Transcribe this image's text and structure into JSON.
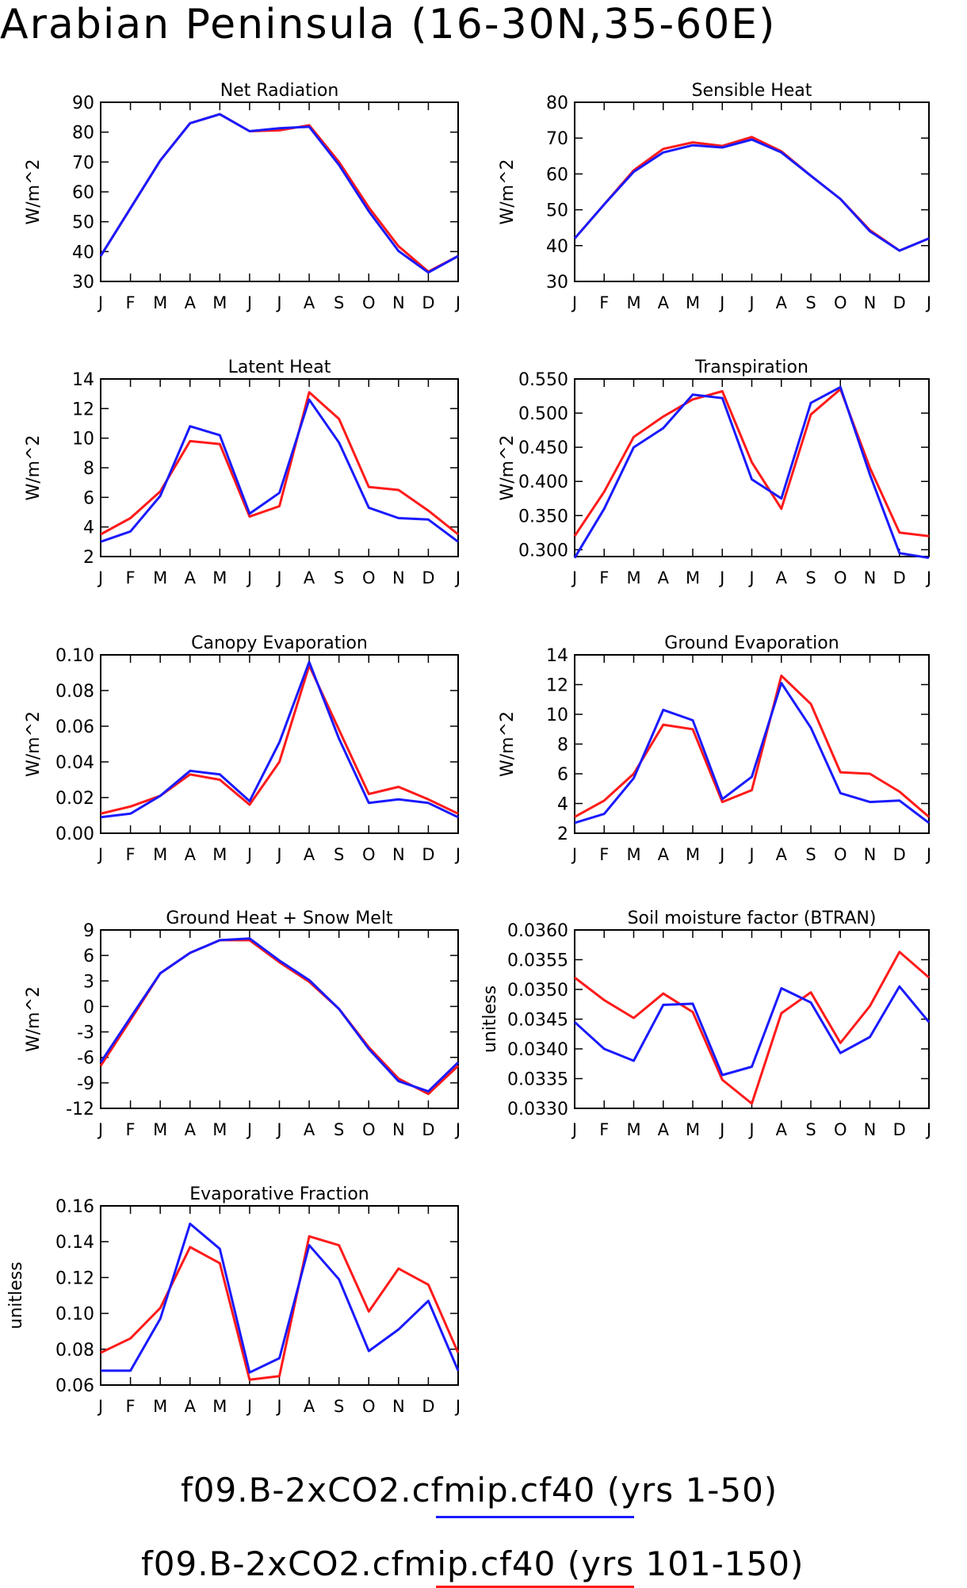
{
  "title": "Arabian Peninsula (16-30N,35-60E)",
  "months": [
    "J",
    "F",
    "M",
    "A",
    "M",
    "J",
    "J",
    "A",
    "S",
    "O",
    "N",
    "D",
    "J"
  ],
  "colors": {
    "blue": "#1a1aff",
    "red": "#ff1a1a"
  },
  "legend": {
    "blue": "f09.B-2xCO2.cfmip.cf40 (yrs 1-50)",
    "red": "f09.B-2xCO2.cfmip.cf40 (yrs 101-150)"
  },
  "chart_data": [
    {
      "type": "line",
      "title": "Net Radiation",
      "ylabel": "W/m^2",
      "ylim": [
        30,
        90
      ],
      "yticks": [
        30,
        40,
        50,
        60,
        70,
        80,
        90
      ],
      "ytick_labels": [
        "30",
        "40",
        "50",
        "60",
        "70",
        "80",
        "90"
      ],
      "categories": [
        "J",
        "F",
        "M",
        "A",
        "M",
        "J",
        "J",
        "A",
        "S",
        "O",
        "N",
        "D",
        "J"
      ],
      "series": [
        {
          "color": "blue",
          "values": [
            38.5,
            54.5,
            70.5,
            83,
            86,
            80.3,
            81.3,
            81.8,
            69,
            53.5,
            40.2,
            33,
            38.5
          ]
        },
        {
          "color": "red",
          "values": [
            38.5,
            54.5,
            70.5,
            83,
            86,
            80.3,
            80.6,
            82.3,
            70,
            54.8,
            41.8,
            33.3,
            38.5
          ]
        }
      ]
    },
    {
      "type": "line",
      "title": "Sensible Heat",
      "ylabel": "W/m^2",
      "ylim": [
        30,
        80
      ],
      "yticks": [
        30,
        40,
        50,
        60,
        70,
        80
      ],
      "ytick_labels": [
        "30",
        "40",
        "50",
        "60",
        "70",
        "80"
      ],
      "categories": [
        "J",
        "F",
        "M",
        "A",
        "M",
        "J",
        "J",
        "A",
        "S",
        "O",
        "N",
        "D",
        "J"
      ],
      "series": [
        {
          "color": "blue",
          "values": [
            42,
            51.5,
            60.6,
            66,
            68,
            67.4,
            69.6,
            66,
            59.5,
            53,
            44,
            38.6,
            42
          ]
        },
        {
          "color": "red",
          "values": [
            42,
            51.5,
            61,
            67,
            68.8,
            67.8,
            70.3,
            66.3,
            59.5,
            53,
            44.3,
            38.6,
            42
          ]
        }
      ]
    },
    {
      "type": "line",
      "title": "Latent Heat",
      "ylabel": "W/m^2",
      "ylim": [
        2,
        14
      ],
      "yticks": [
        2,
        4,
        6,
        8,
        10,
        12,
        14
      ],
      "ytick_labels": [
        "2",
        "4",
        "6",
        "8",
        "10",
        "12",
        "14"
      ],
      "categories": [
        "J",
        "F",
        "M",
        "A",
        "M",
        "J",
        "J",
        "A",
        "S",
        "O",
        "N",
        "D",
        "J"
      ],
      "series": [
        {
          "color": "blue",
          "values": [
            3,
            3.7,
            6.1,
            10.8,
            10.2,
            4.9,
            6.3,
            12.6,
            9.7,
            5.3,
            4.6,
            4.5,
            3
          ]
        },
        {
          "color": "red",
          "values": [
            3.5,
            4.6,
            6.4,
            9.8,
            9.6,
            4.7,
            5.4,
            13.1,
            11.3,
            6.7,
            6.5,
            5.1,
            3.5
          ]
        }
      ]
    },
    {
      "type": "line",
      "title": "Transpiration",
      "ylabel": "W/m^2",
      "ylim": [
        0.29,
        0.55
      ],
      "yticks": [
        0.3,
        0.35,
        0.4,
        0.45,
        0.5,
        0.55
      ],
      "ytick_labels": [
        "0.300",
        "0.350",
        "0.400",
        "0.450",
        "0.500",
        "0.550"
      ],
      "categories": [
        "J",
        "F",
        "M",
        "A",
        "M",
        "J",
        "J",
        "A",
        "S",
        "O",
        "N",
        "D",
        "J"
      ],
      "series": [
        {
          "color": "blue",
          "values": [
            0.288,
            0.36,
            0.45,
            0.478,
            0.527,
            0.522,
            0.403,
            0.375,
            0.515,
            0.538,
            0.41,
            0.295,
            0.288
          ]
        },
        {
          "color": "red",
          "values": [
            0.32,
            0.385,
            0.465,
            0.495,
            0.52,
            0.532,
            0.428,
            0.36,
            0.498,
            0.535,
            0.42,
            0.325,
            0.32
          ]
        }
      ]
    },
    {
      "type": "line",
      "title": "Canopy Evaporation",
      "ylabel": "W/m^2",
      "ylim": [
        0,
        0.1
      ],
      "yticks": [
        0,
        0.02,
        0.04,
        0.06,
        0.08,
        0.1
      ],
      "ytick_labels": [
        "0.00",
        "0.02",
        "0.04",
        "0.06",
        "0.08",
        "0.10"
      ],
      "categories": [
        "J",
        "F",
        "M",
        "A",
        "M",
        "J",
        "J",
        "A",
        "S",
        "O",
        "N",
        "D",
        "J"
      ],
      "series": [
        {
          "color": "blue",
          "values": [
            0.009,
            0.011,
            0.021,
            0.035,
            0.033,
            0.018,
            0.051,
            0.096,
            0.053,
            0.017,
            0.019,
            0.017,
            0.009
          ]
        },
        {
          "color": "red",
          "values": [
            0.011,
            0.015,
            0.021,
            0.033,
            0.03,
            0.016,
            0.04,
            0.094,
            0.058,
            0.022,
            0.026,
            0.019,
            0.011
          ]
        }
      ]
    },
    {
      "type": "line",
      "title": "Ground Evaporation",
      "ylabel": "W/m^2",
      "ylim": [
        2,
        14
      ],
      "yticks": [
        2,
        4,
        6,
        8,
        10,
        12,
        14
      ],
      "ytick_labels": [
        "2",
        "4",
        "6",
        "8",
        "10",
        "12",
        "14"
      ],
      "categories": [
        "J",
        "F",
        "M",
        "A",
        "M",
        "J",
        "J",
        "A",
        "S",
        "O",
        "N",
        "D",
        "J"
      ],
      "series": [
        {
          "color": "blue",
          "values": [
            2.7,
            3.3,
            5.7,
            10.3,
            9.6,
            4.3,
            5.8,
            12.1,
            9.1,
            4.7,
            4.1,
            4.2,
            2.7
          ]
        },
        {
          "color": "red",
          "values": [
            3.1,
            4.2,
            6,
            9.3,
            9,
            4.1,
            4.9,
            12.6,
            10.7,
            6.1,
            6,
            4.8,
            3.1
          ]
        }
      ]
    },
    {
      "type": "line",
      "title": "Ground Heat + Snow Melt",
      "ylabel": "W/m^2",
      "ylim": [
        -12,
        9
      ],
      "yticks": [
        -12,
        -9,
        -6,
        -3,
        0,
        3,
        6,
        9
      ],
      "ytick_labels": [
        "-12",
        "-9",
        "-6",
        "-3",
        "0",
        "3",
        "6",
        "9"
      ],
      "categories": [
        "J",
        "F",
        "M",
        "A",
        "M",
        "J",
        "J",
        "A",
        "S",
        "O",
        "N",
        "D",
        "J"
      ],
      "series": [
        {
          "color": "blue",
          "values": [
            -6.6,
            -1.3,
            3.9,
            6.3,
            7.8,
            8,
            5.4,
            3.1,
            -0.3,
            -5,
            -8.8,
            -10,
            -6.6
          ]
        },
        {
          "color": "red",
          "values": [
            -7,
            -1.6,
            3.9,
            6.3,
            7.8,
            7.8,
            5.2,
            2.9,
            -0.3,
            -4.8,
            -8.5,
            -10.3,
            -7
          ]
        }
      ]
    },
    {
      "type": "line",
      "title": "Soil moisture factor (BTRAN)",
      "ylabel": "unitless",
      "ylim": [
        0.033,
        0.036
      ],
      "yticks": [
        0.033,
        0.0335,
        0.034,
        0.0345,
        0.035,
        0.0355,
        0.036
      ],
      "ytick_labels": [
        "0.0330",
        "0.0335",
        "0.0340",
        "0.0345",
        "0.0350",
        "0.0355",
        "0.0360"
      ],
      "categories": [
        "J",
        "F",
        "M",
        "A",
        "M",
        "J",
        "J",
        "A",
        "S",
        "O",
        "N",
        "D",
        "J"
      ],
      "series": [
        {
          "color": "blue",
          "values": [
            0.03445,
            0.034,
            0.0338,
            0.03474,
            0.03476,
            0.03356,
            0.0337,
            0.03502,
            0.03478,
            0.03393,
            0.0342,
            0.03505,
            0.03445
          ]
        },
        {
          "color": "red",
          "values": [
            0.0352,
            0.03482,
            0.03452,
            0.03493,
            0.03462,
            0.03348,
            0.03308,
            0.0346,
            0.03495,
            0.0341,
            0.03472,
            0.03563,
            0.0352
          ]
        }
      ]
    },
    {
      "type": "line",
      "title": "Evaporative Fraction",
      "ylabel": "unitless",
      "ylim": [
        0.06,
        0.16
      ],
      "yticks": [
        0.06,
        0.08,
        0.1,
        0.12,
        0.14,
        0.16
      ],
      "ytick_labels": [
        "0.06",
        "0.08",
        "0.10",
        "0.12",
        "0.14",
        "0.16"
      ],
      "categories": [
        "J",
        "F",
        "M",
        "A",
        "M",
        "J",
        "J",
        "A",
        "S",
        "O",
        "N",
        "D",
        "J"
      ],
      "series": [
        {
          "color": "blue",
          "values": [
            0.068,
            0.068,
            0.097,
            0.15,
            0.136,
            0.067,
            0.075,
            0.138,
            0.119,
            0.079,
            0.091,
            0.107,
            0.068
          ]
        },
        {
          "color": "red",
          "values": [
            0.078,
            0.086,
            0.103,
            0.137,
            0.128,
            0.063,
            0.065,
            0.143,
            0.138,
            0.101,
            0.125,
            0.116,
            0.078
          ]
        }
      ]
    }
  ]
}
